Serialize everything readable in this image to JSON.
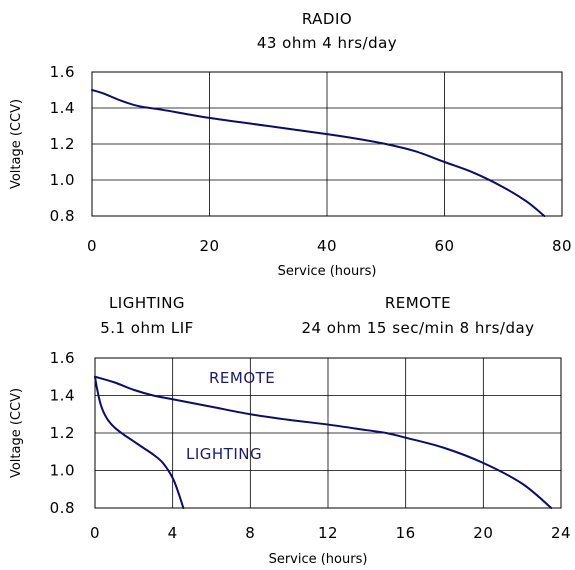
{
  "chart_data": [
    {
      "type": "line",
      "title": "RADIO",
      "subtitle": "43 ohm 4 hrs/day",
      "xlabel": "Service (hours)",
      "ylabel": "Voltage (CCV)",
      "xlim": [
        0,
        80
      ],
      "ylim": [
        0.8,
        1.6
      ],
      "xticks": [
        "0",
        "20",
        "40",
        "60",
        "80"
      ],
      "yticks": [
        "1.6",
        "1.4",
        "1.2",
        "1.0",
        "0.8"
      ],
      "grid": true,
      "series": [
        {
          "color": "#0b0b72",
          "x": [
            0,
            2,
            5,
            8,
            12,
            20,
            30,
            40,
            45,
            50,
            55,
            60,
            65,
            70,
            74,
            77
          ],
          "y": [
            1.5,
            1.48,
            1.44,
            1.41,
            1.39,
            1.345,
            1.3,
            1.255,
            1.23,
            1.2,
            1.16,
            1.1,
            1.04,
            0.96,
            0.88,
            0.8
          ]
        }
      ]
    },
    {
      "type": "line",
      "title": "",
      "xlabel": "Service (hours)",
      "ylabel": "Voltage (CCV)",
      "xlim": [
        0,
        24
      ],
      "ylim": [
        0.8,
        1.6
      ],
      "xticks": [
        "0",
        "4",
        "8",
        "12",
        "16",
        "20",
        "24"
      ],
      "yticks": [
        "1.6",
        "1.4",
        "1.2",
        "1.0",
        "0.8"
      ],
      "grid": true,
      "headers": [
        {
          "name": "LIGHTING",
          "condition": "5.1 ohm LIF"
        },
        {
          "name": "REMOTE",
          "condition": "24 ohm 15 sec/min 8 hrs/day"
        }
      ],
      "annotations": [
        "REMOTE",
        "LIGHTING"
      ],
      "series": [
        {
          "color": "#0b0b72",
          "x": [
            0,
            1,
            2,
            3,
            4,
            6,
            8,
            10,
            12,
            14,
            15,
            16,
            18,
            20,
            22,
            23.5
          ],
          "y": [
            1.5,
            1.47,
            1.43,
            1.4,
            1.38,
            1.34,
            1.3,
            1.27,
            1.245,
            1.215,
            1.2,
            1.175,
            1.12,
            1.04,
            0.93,
            0.8
          ]
        },
        {
          "color": "#0b0b72",
          "x": [
            0,
            0.1,
            0.3,
            0.6,
            1,
            1.5,
            2,
            2.5,
            3,
            3.5,
            4,
            4.3,
            4.55
          ],
          "y": [
            1.5,
            1.44,
            1.35,
            1.28,
            1.23,
            1.19,
            1.155,
            1.12,
            1.085,
            1.04,
            0.96,
            0.88,
            0.8
          ]
        }
      ]
    }
  ]
}
